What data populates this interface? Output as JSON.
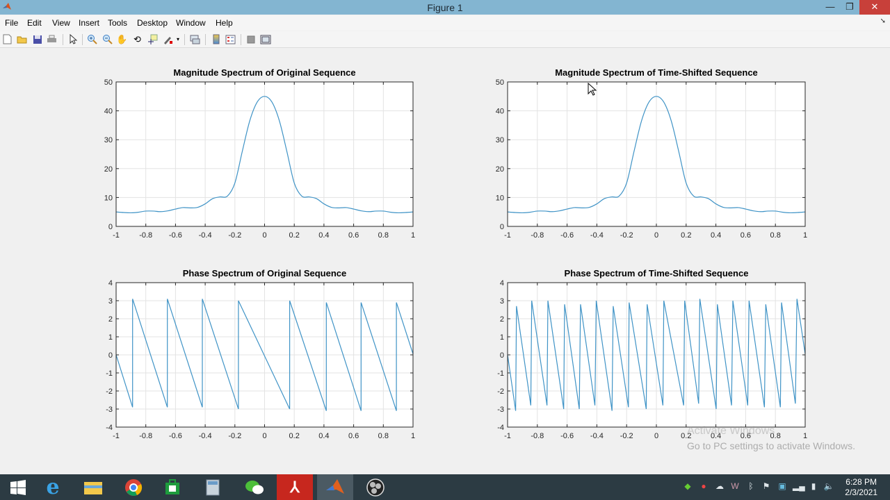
{
  "window": {
    "title": "Figure 1",
    "minimize": "—",
    "restore": "❐",
    "close": "✕"
  },
  "menu": [
    "File",
    "Edit",
    "View",
    "Insert",
    "Tools",
    "Desktop",
    "Window",
    "Help"
  ],
  "toolbar": [
    "new-figure",
    "open-file",
    "save",
    "print",
    "edit-plot",
    "zoom-in",
    "zoom-out",
    "pan",
    "rotate-3d",
    "data-cursor",
    "brush",
    "link-plot",
    "colorbar",
    "legend",
    "hide-plot-tools",
    "show-plot-tools"
  ],
  "watermark": {
    "line1": "Activate Windows",
    "line2": "Go to PC settings to activate Windows."
  },
  "taskbar": {
    "apps": [
      "internet-explorer",
      "file-explorer",
      "chrome",
      "store",
      "calculator",
      "wechat",
      "acrobat",
      "matlab",
      "obs"
    ],
    "active": "matlab",
    "time": "6:28 PM",
    "date": "2/3/2021"
  },
  "colors": {
    "line": "#3f93c6",
    "titlebar": "#83b5d1",
    "taskbar": "#2c3b43"
  },
  "chart_data": [
    {
      "type": "line",
      "title": "Magnitude Spectrum of Original Sequence",
      "xlim": [
        -1,
        1
      ],
      "ylim": [
        0,
        50
      ],
      "grid": true,
      "xticks": [
        "-1",
        "-0.8",
        "-0.6",
        "-0.4",
        "-0.2",
        "0",
        "0.2",
        "0.4",
        "0.6",
        "0.8",
        "1"
      ],
      "yticks": [
        "0",
        "10",
        "20",
        "30",
        "40",
        "50"
      ],
      "x": [
        -1,
        -0.95,
        -0.9,
        -0.85,
        -0.8,
        -0.75,
        -0.7,
        -0.65,
        -0.6,
        -0.55,
        -0.5,
        -0.45,
        -0.4,
        -0.35,
        -0.3,
        -0.25,
        -0.2,
        -0.15,
        -0.1,
        -0.05,
        0,
        0.05,
        0.1,
        0.15,
        0.2,
        0.25,
        0.3,
        0.35,
        0.4,
        0.45,
        0.5,
        0.55,
        0.6,
        0.65,
        0.7,
        0.75,
        0.8,
        0.85,
        0.9,
        0.95,
        1
      ],
      "y": [
        5.0,
        4.8,
        4.7,
        4.9,
        5.3,
        5.3,
        5.1,
        5.4,
        6.0,
        6.5,
        6.4,
        6.6,
        7.8,
        9.6,
        10.2,
        10.5,
        15,
        26,
        36.5,
        43,
        45,
        43,
        36.5,
        26,
        15,
        10.5,
        10.2,
        9.6,
        7.8,
        6.6,
        6.4,
        6.5,
        6.0,
        5.4,
        5.1,
        5.3,
        5.3,
        4.9,
        4.7,
        4.8,
        5.0
      ]
    },
    {
      "type": "line",
      "title": "Magnitude Spectrum of Time-Shifted Sequence",
      "xlim": [
        -1,
        1
      ],
      "ylim": [
        0,
        50
      ],
      "grid": true,
      "xticks": [
        "-1",
        "-0.8",
        "-0.6",
        "-0.4",
        "-0.2",
        "0",
        "0.2",
        "0.4",
        "0.6",
        "0.8",
        "1"
      ],
      "yticks": [
        "0",
        "10",
        "20",
        "30",
        "40",
        "50"
      ],
      "x": [
        -1,
        -0.95,
        -0.9,
        -0.85,
        -0.8,
        -0.75,
        -0.7,
        -0.65,
        -0.6,
        -0.55,
        -0.5,
        -0.45,
        -0.4,
        -0.35,
        -0.3,
        -0.25,
        -0.2,
        -0.15,
        -0.1,
        -0.05,
        0,
        0.05,
        0.1,
        0.15,
        0.2,
        0.25,
        0.3,
        0.35,
        0.4,
        0.45,
        0.5,
        0.55,
        0.6,
        0.65,
        0.7,
        0.75,
        0.8,
        0.85,
        0.9,
        0.95,
        1
      ],
      "y": [
        5.0,
        4.8,
        4.7,
        4.9,
        5.3,
        5.3,
        5.1,
        5.4,
        6.0,
        6.5,
        6.4,
        6.6,
        7.8,
        9.6,
        10.2,
        10.5,
        15,
        26,
        36.5,
        43,
        45,
        43,
        36.5,
        26,
        15,
        10.5,
        10.2,
        9.6,
        7.8,
        6.6,
        6.4,
        6.5,
        6.0,
        5.4,
        5.1,
        5.3,
        5.3,
        4.9,
        4.7,
        4.8,
        5.0
      ]
    },
    {
      "type": "line",
      "title": "Phase Spectrum of Original Sequence",
      "xlim": [
        -1,
        1
      ],
      "ylim": [
        -4,
        4
      ],
      "grid": true,
      "xticks": [
        "-1",
        "-0.8",
        "-0.6",
        "-0.4",
        "-0.2",
        "0",
        "0.2",
        "0.4",
        "0.6",
        "0.8",
        "1"
      ],
      "yticks": [
        "-4",
        "-3",
        "-2",
        "-1",
        "0",
        "1",
        "2",
        "3",
        "4"
      ],
      "points": [
        [
          -1,
          0
        ],
        [
          -0.889,
          -2.9
        ],
        [
          -0.889,
          3.1
        ],
        [
          -0.655,
          -2.9
        ],
        [
          -0.655,
          3.1
        ],
        [
          -0.419,
          -2.9
        ],
        [
          -0.419,
          3.1
        ],
        [
          -0.176,
          -3.0
        ],
        [
          -0.176,
          3.0
        ],
        [
          0.169,
          -3.0
        ],
        [
          0.169,
          3.0
        ],
        [
          0.416,
          -3.1
        ],
        [
          0.416,
          2.9
        ],
        [
          0.65,
          -3.1
        ],
        [
          0.65,
          2.9
        ],
        [
          0.888,
          -3.1
        ],
        [
          0.888,
          2.9
        ],
        [
          1,
          0.05
        ]
      ]
    },
    {
      "type": "line",
      "title": "Phase Spectrum of Time-Shifted Sequence",
      "xlim": [
        -1,
        1
      ],
      "ylim": [
        -4,
        4
      ],
      "grid": true,
      "xticks": [
        "-1",
        "-0.8",
        "-0.6",
        "-0.4",
        "-0.2",
        "0",
        "0.2",
        "0.4",
        "0.6",
        "0.8",
        "1"
      ],
      "yticks": [
        "-4",
        "-3",
        "-2",
        "-1",
        "0",
        "1",
        "2",
        "3",
        "4"
      ],
      "points": [
        [
          -1,
          0
        ],
        [
          -0.946,
          -3.1
        ],
        [
          -0.94,
          2.7
        ],
        [
          -0.844,
          -2.8
        ],
        [
          -0.838,
          3.0
        ],
        [
          -0.735,
          -2.8
        ],
        [
          -0.729,
          3.0
        ],
        [
          -0.623,
          -3.0
        ],
        [
          -0.617,
          2.8
        ],
        [
          -0.518,
          -3.0
        ],
        [
          -0.51,
          2.8
        ],
        [
          -0.413,
          -2.8
        ],
        [
          -0.404,
          3.0
        ],
        [
          -0.298,
          -3.1
        ],
        [
          -0.29,
          2.7
        ],
        [
          -0.188,
          -2.9
        ],
        [
          -0.183,
          2.9
        ],
        [
          -0.068,
          -3.0
        ],
        [
          -0.062,
          2.8
        ],
        [
          0.044,
          -2.8
        ],
        [
          0.05,
          3.0
        ],
        [
          0.183,
          -2.8
        ],
        [
          0.19,
          3.0
        ],
        [
          0.284,
          -2.7
        ],
        [
          0.292,
          3.1
        ],
        [
          0.402,
          -3.0
        ],
        [
          0.41,
          2.8
        ],
        [
          0.505,
          -2.8
        ],
        [
          0.514,
          3.0
        ],
        [
          0.614,
          -2.8
        ],
        [
          0.623,
          3.0
        ],
        [
          0.726,
          -2.9
        ],
        [
          0.735,
          2.8
        ],
        [
          0.833,
          -2.9
        ],
        [
          0.841,
          2.9
        ],
        [
          0.934,
          -2.7
        ],
        [
          0.945,
          3.1
        ],
        [
          1,
          0.05
        ]
      ]
    }
  ]
}
